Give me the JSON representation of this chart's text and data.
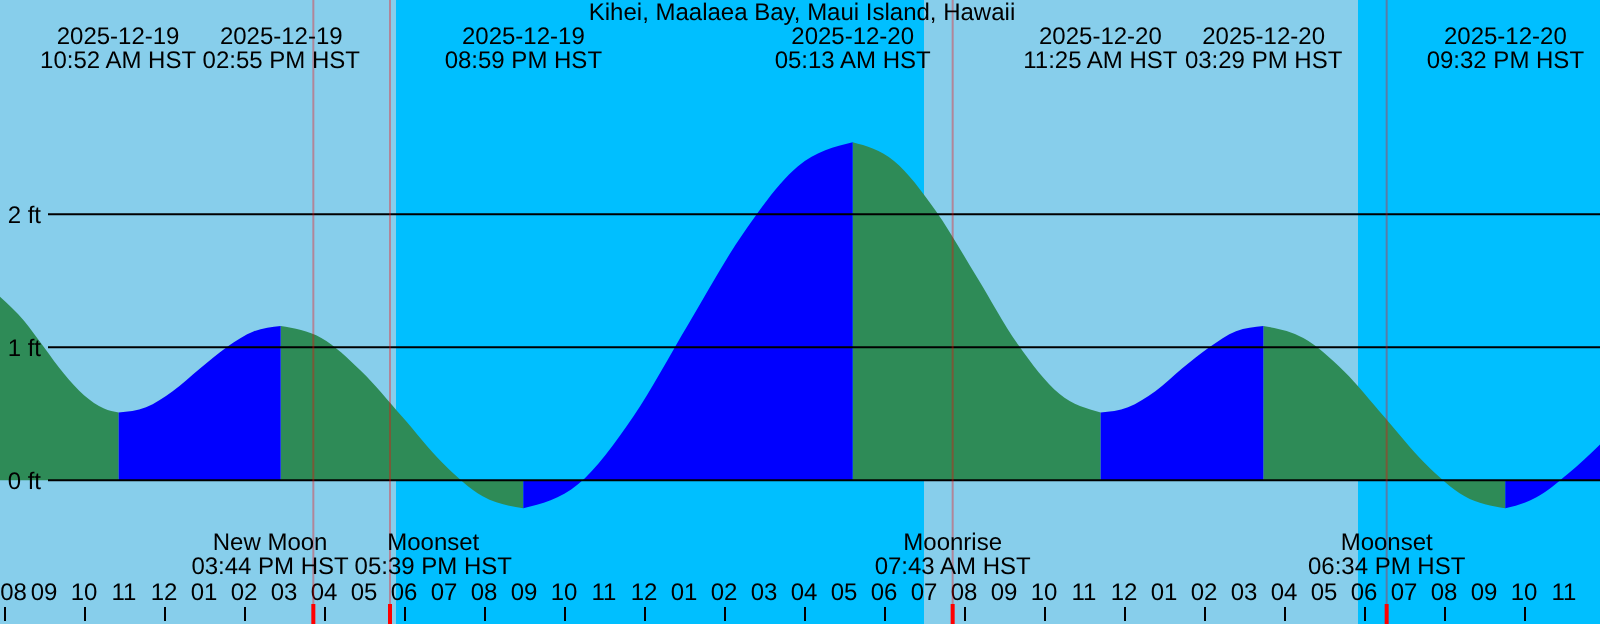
{
  "chart_data": {
    "type": "area",
    "title": "Kihei, Maalaea Bay, Maui Island, Hawaii",
    "xlim": [
      "2025-12-19T07:54",
      "2025-12-20T23:54"
    ],
    "ylim": [
      -1.08,
      3.61
    ],
    "xticks": [
      {
        "value": "2025-12-19T08:00",
        "label": "08"
      },
      {
        "value": "2025-12-19T09:00",
        "label": "09"
      },
      {
        "value": "2025-12-19T10:00",
        "label": "10"
      },
      {
        "value": "2025-12-19T11:00",
        "label": "11"
      },
      {
        "value": "2025-12-19T12:00",
        "label": "12"
      },
      {
        "value": "2025-12-19T13:00",
        "label": "01"
      },
      {
        "value": "2025-12-19T14:00",
        "label": "02"
      },
      {
        "value": "2025-12-19T15:00",
        "label": "03"
      },
      {
        "value": "2025-12-19T16:00",
        "label": "04"
      },
      {
        "value": "2025-12-19T17:00",
        "label": "05"
      },
      {
        "value": "2025-12-19T18:00",
        "label": "06"
      },
      {
        "value": "2025-12-19T19:00",
        "label": "07"
      },
      {
        "value": "2025-12-19T20:00",
        "label": "08"
      },
      {
        "value": "2025-12-19T21:00",
        "label": "09"
      },
      {
        "value": "2025-12-19T22:00",
        "label": "10"
      },
      {
        "value": "2025-12-19T23:00",
        "label": "11"
      },
      {
        "value": "2025-12-20T00:00",
        "label": "12"
      },
      {
        "value": "2025-12-20T01:00",
        "label": "01"
      },
      {
        "value": "2025-12-20T02:00",
        "label": "02"
      },
      {
        "value": "2025-12-20T03:00",
        "label": "03"
      },
      {
        "value": "2025-12-20T04:00",
        "label": "04"
      },
      {
        "value": "2025-12-20T05:00",
        "label": "05"
      },
      {
        "value": "2025-12-20T06:00",
        "label": "06"
      },
      {
        "value": "2025-12-20T07:00",
        "label": "07"
      },
      {
        "value": "2025-12-20T08:00",
        "label": "08"
      },
      {
        "value": "2025-12-20T09:00",
        "label": "09"
      },
      {
        "value": "2025-12-20T10:00",
        "label": "10"
      },
      {
        "value": "2025-12-20T11:00",
        "label": "11"
      },
      {
        "value": "2025-12-20T12:00",
        "label": "12"
      },
      {
        "value": "2025-12-20T13:00",
        "label": "01"
      },
      {
        "value": "2025-12-20T14:00",
        "label": "02"
      },
      {
        "value": "2025-12-20T15:00",
        "label": "03"
      },
      {
        "value": "2025-12-20T16:00",
        "label": "04"
      },
      {
        "value": "2025-12-20T17:00",
        "label": "05"
      },
      {
        "value": "2025-12-20T18:00",
        "label": "06"
      },
      {
        "value": "2025-12-20T19:00",
        "label": "07"
      },
      {
        "value": "2025-12-20T20:00",
        "label": "08"
      },
      {
        "value": "2025-12-20T21:00",
        "label": "09"
      },
      {
        "value": "2025-12-20T22:00",
        "label": "10"
      },
      {
        "value": "2025-12-20T23:00",
        "label": "11"
      }
    ],
    "yticks": [
      {
        "value": 0,
        "label": "0 ft"
      },
      {
        "value": 1,
        "label": "1 ft"
      },
      {
        "value": 2,
        "label": "2 ft"
      }
    ],
    "grid": "y",
    "bands": [
      {
        "axis": "x",
        "from": "2025-12-19T07:54",
        "to": "2025-12-19T17:48",
        "color": "#87ceeb"
      },
      {
        "axis": "x",
        "from": "2025-12-19T17:48",
        "to": "2025-12-20T07:00",
        "color": "#00bfff"
      },
      {
        "axis": "x",
        "from": "2025-12-20T07:00",
        "to": "2025-12-20T17:51",
        "color": "#87ceeb"
      },
      {
        "axis": "x",
        "from": "2025-12-20T17:51",
        "to": "2025-12-20T23:54",
        "color": "#00bfff"
      }
    ],
    "ref_lines": [
      {
        "axis": "x",
        "value": "2025-12-19T15:44",
        "label": "New Moon\n03:44 PM HST",
        "color": "#ff0000"
      },
      {
        "axis": "x",
        "value": "2025-12-19T17:39",
        "label": "Moonset\n05:39 PM HST",
        "color": "#ff0000"
      },
      {
        "axis": "x",
        "value": "2025-12-20T07:43",
        "label": "Moonrise\n07:43 AM HST",
        "color": "#ff0000"
      },
      {
        "axis": "x",
        "value": "2025-12-20T18:34",
        "label": "Moonset\n06:34 PM HST",
        "color": "#ff0000"
      }
    ],
    "series": [
      {
        "color": "#2e8b57",
        "x": [
          "2025-12-19T07:54",
          "2025-12-19T08:30",
          "2025-12-19T09:00",
          "2025-12-19T09:30",
          "2025-12-19T10:00",
          "2025-12-19T10:30",
          "2025-12-19T10:52",
          "2025-12-19T13:00",
          "2025-12-19T14:55",
          "2025-12-19T15:56",
          "2025-12-19T16:56",
          "2025-12-19T17:57",
          "2025-12-19T18:58",
          "2025-12-19T19:58",
          "2025-12-19T20:59",
          "2025-12-20T00:00",
          "2025-12-20T05:13",
          "2025-12-20T06:15",
          "2025-12-20T07:17",
          "2025-12-20T08:19",
          "2025-12-20T09:21",
          "2025-12-20T10:23",
          "2025-12-20T11:25",
          "2025-12-20T13:00",
          "2025-12-20T15:29",
          "2025-12-20T16:29",
          "2025-12-20T17:30",
          "2025-12-20T18:30",
          "2025-12-20T19:31",
          "2025-12-20T20:31",
          "2025-12-20T21:32"
        ],
        "values": [
          1.38,
          1.2,
          1.0,
          0.8,
          0.64,
          0.54,
          0.51,
          null,
          1.16,
          1.07,
          0.82,
          0.48,
          0.13,
          -0.12,
          -0.21,
          null,
          2.54,
          2.4,
          2.03,
          1.53,
          1.02,
          0.65,
          0.51,
          null,
          1.16,
          1.07,
          0.82,
          0.48,
          0.13,
          -0.12,
          -0.21
        ]
      },
      {
        "color": "#0000ff",
        "x": [
          "2025-12-19T10:52",
          "2025-12-19T11:33",
          "2025-12-19T12:13",
          "2025-12-19T12:54",
          "2025-12-19T13:34",
          "2025-12-19T14:15",
          "2025-12-19T14:55",
          "2025-12-19T17:00",
          "2025-12-19T20:59",
          "2025-12-19T22:21",
          "2025-12-19T23:44",
          "2025-12-20T01:06",
          "2025-12-20T02:28",
          "2025-12-20T03:51",
          "2025-12-20T05:13",
          "2025-12-20T08:00",
          "2025-12-20T11:25",
          "2025-12-20T12:06",
          "2025-12-20T12:47",
          "2025-12-20T13:27",
          "2025-12-20T14:08",
          "2025-12-20T14:48",
          "2025-12-20T15:29",
          "2025-12-20T18:00",
          "2025-12-20T21:32",
          "2025-12-20T22:18",
          "2025-12-20T23:06",
          "2025-12-20T23:54"
        ],
        "values": [
          0.51,
          0.55,
          0.67,
          0.84,
          1.0,
          1.12,
          1.16,
          null,
          -0.21,
          -0.03,
          0.48,
          1.17,
          1.85,
          2.36,
          2.54,
          null,
          0.51,
          0.55,
          0.67,
          0.84,
          1.0,
          1.12,
          1.16,
          null,
          -0.21,
          -0.13,
          0.05,
          0.27
        ]
      }
    ],
    "annotations": [
      "2025-12-19\n10:52 AM HST",
      "2025-12-19\n02:55 PM HST",
      "2025-12-19\n08:59 PM HST",
      "2025-12-20\n05:13 AM HST",
      "2025-12-20\n11:25 AM HST",
      "2025-12-20\n03:29 PM HST",
      "2025-12-20\n09:32 PM HST"
    ]
  }
}
